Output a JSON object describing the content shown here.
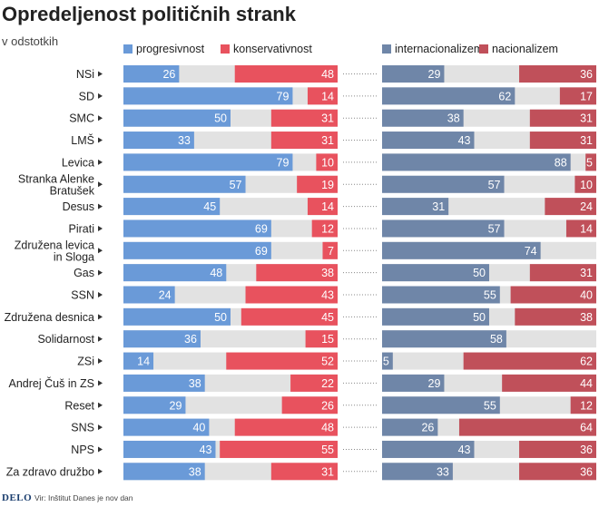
{
  "title": "Opredeljenost političnih strank",
  "subtitle": "v odstotkih",
  "footer": {
    "brand": "DELO",
    "source": "Vir: Inštitut Danes je nov dan"
  },
  "colors": {
    "progresivnost": "#6a9ad8",
    "konservativnost": "#e8525e",
    "internacionalizem": "#6f86a8",
    "nacionalizem": "#c0505a",
    "remainder": "#e2e2e2"
  },
  "chart_data": [
    {
      "type": "bar",
      "stacked": true,
      "orientation": "horizontal",
      "title": "Opredeljenost političnih strank",
      "subtitle": "v odstotkih",
      "xlim": [
        0,
        100
      ],
      "categories": [
        "NSi",
        "SD",
        "SMC",
        "LMŠ",
        "Levica",
        "Stranka Alenke Bratušek",
        "Desus",
        "Pirati",
        "Združena levica in Sloga",
        "Gas",
        "SSN",
        "Združena desnica",
        "Solidarnost",
        "ZSi",
        "Andrej Čuš in ZS",
        "Reset",
        "SNS",
        "NPS",
        "Za zdravo družbo"
      ],
      "series": [
        {
          "name": "progresivnost",
          "align": "left",
          "values": [
            26,
            79,
            50,
            33,
            79,
            57,
            45,
            69,
            69,
            48,
            24,
            50,
            36,
            14,
            38,
            29,
            40,
            43,
            38
          ]
        },
        {
          "name": "konservativnost",
          "align": "right",
          "values": [
            48,
            14,
            31,
            31,
            10,
            19,
            14,
            12,
            7,
            38,
            43,
            45,
            15,
            52,
            22,
            26,
            48,
            55,
            31
          ]
        }
      ]
    },
    {
      "type": "bar",
      "stacked": true,
      "orientation": "horizontal",
      "xlim": [
        0,
        100
      ],
      "categories": [
        "NSi",
        "SD",
        "SMC",
        "LMŠ",
        "Levica",
        "Stranka Alenke Bratušek",
        "Desus",
        "Pirati",
        "Združena levica in Sloga",
        "Gas",
        "SSN",
        "Združena desnica",
        "Solidarnost",
        "ZSi",
        "Andrej Čuš in ZS",
        "Reset",
        "SNS",
        "NPS",
        "Za zdravo družbo"
      ],
      "series": [
        {
          "name": "internacionalizem",
          "align": "left",
          "values": [
            29,
            62,
            38,
            43,
            88,
            57,
            31,
            57,
            74,
            50,
            55,
            50,
            58,
            5,
            29,
            55,
            26,
            43,
            33
          ]
        },
        {
          "name": "nacionalizem",
          "align": "right",
          "values": [
            36,
            17,
            31,
            31,
            5,
            10,
            24,
            14,
            null,
            31,
            40,
            38,
            null,
            62,
            44,
            12,
            64,
            36,
            36
          ]
        }
      ]
    }
  ]
}
